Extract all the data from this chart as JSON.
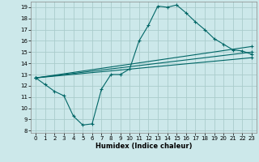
{
  "title": "",
  "xlabel": "Humidex (Indice chaleur)",
  "bg_color": "#cce8ea",
  "grid_color": "#aacccc",
  "line_color": "#006666",
  "xlim": [
    -0.5,
    23.5
  ],
  "ylim": [
    7.8,
    19.5
  ],
  "xticks": [
    0,
    1,
    2,
    3,
    4,
    5,
    6,
    7,
    8,
    9,
    10,
    11,
    12,
    13,
    14,
    15,
    16,
    17,
    18,
    19,
    20,
    21,
    22,
    23
  ],
  "yticks": [
    8,
    9,
    10,
    11,
    12,
    13,
    14,
    15,
    16,
    17,
    18,
    19
  ],
  "line1_x": [
    0,
    1,
    2,
    3,
    4,
    5,
    6,
    7,
    8,
    9,
    10,
    11,
    12,
    13,
    14,
    15,
    16,
    17,
    18,
    19,
    20,
    21,
    22,
    23
  ],
  "line1_y": [
    12.7,
    12.1,
    11.5,
    11.1,
    9.3,
    8.5,
    8.6,
    11.7,
    13.0,
    13.0,
    13.5,
    16.0,
    17.4,
    19.1,
    19.0,
    19.2,
    18.5,
    17.7,
    17.0,
    16.2,
    15.7,
    15.2,
    15.1,
    14.8
  ],
  "line2_x": [
    0,
    23
  ],
  "line2_y": [
    12.7,
    15.5
  ],
  "line3_x": [
    0,
    23
  ],
  "line3_y": [
    12.7,
    15.0
  ],
  "line4_x": [
    0,
    23
  ],
  "line4_y": [
    12.7,
    14.5
  ]
}
